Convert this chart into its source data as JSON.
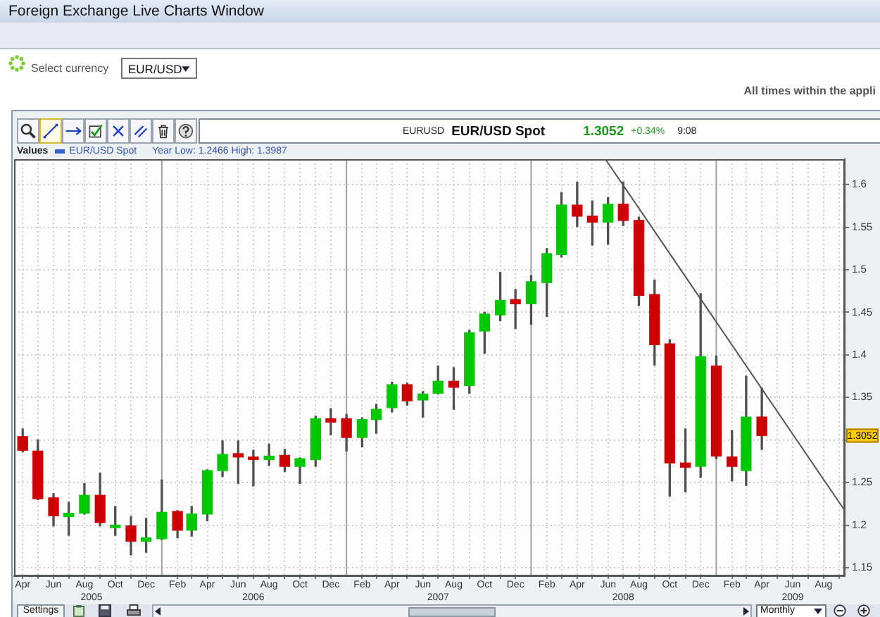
{
  "chart_data": {
    "type": "candlestick",
    "title": "EUR/USD Spot",
    "legend_title": "Values",
    "legend": "top left",
    "annotations": [
      "Foreign Exchange Live Charts Window",
      "Select currency",
      "EUR/USD",
      "All times within the appli",
      "EURUSD",
      "1.3052",
      "+0.34%",
      "9:08",
      "Year Low: 1.2466 High: 1.3987",
      {
        "text": "1.3052",
        "y": 1.3052
      },
      "Settings",
      "Monthly"
    ],
    "xlim": [
      "2005-03-15",
      "2009-09-12"
    ],
    "xticks": [
      {
        "value": "2005-04",
        "label": "Apr"
      },
      {
        "value": "2005-05",
        "label": null
      },
      {
        "value": "2005-06",
        "label": "Jun"
      },
      {
        "value": "2005-07",
        "label": null
      },
      {
        "value": "2005-08",
        "label": "Aug"
      },
      {
        "value": "2005-09",
        "label": null
      },
      {
        "value": "2005-10",
        "label": "Oct"
      },
      {
        "value": "2005-11",
        "label": null
      },
      {
        "value": "2005-12",
        "label": "Dec"
      },
      {
        "value": "2006-02",
        "label": "Feb"
      },
      {
        "value": "2006-03",
        "label": null
      },
      {
        "value": "2006-04",
        "label": "Apr"
      },
      {
        "value": "2006-05",
        "label": null
      },
      {
        "value": "2006-06",
        "label": "Jun"
      },
      {
        "value": "2006-07",
        "label": null
      },
      {
        "value": "2006-08",
        "label": "Aug"
      },
      {
        "value": "2006-09",
        "label": null
      },
      {
        "value": "2006-10",
        "label": "Oct"
      },
      {
        "value": "2006-11",
        "label": null
      },
      {
        "value": "2006-12",
        "label": "Dec"
      },
      {
        "value": "2007-02",
        "label": "Feb"
      },
      {
        "value": "2007-03",
        "label": null
      },
      {
        "value": "2007-04",
        "label": "Apr"
      },
      {
        "value": "2007-05",
        "label": null
      },
      {
        "value": "2007-06",
        "label": "Jun"
      },
      {
        "value": "2007-07",
        "label": null
      },
      {
        "value": "2007-08",
        "label": "Aug"
      },
      {
        "value": "2007-09",
        "label": null
      },
      {
        "value": "2007-10",
        "label": "Oct"
      },
      {
        "value": "2007-11",
        "label": null
      },
      {
        "value": "2007-12",
        "label": "Dec"
      },
      {
        "value": "2008-02",
        "label": "Feb"
      },
      {
        "value": "2008-03",
        "label": null
      },
      {
        "value": "2008-04",
        "label": "Apr"
      },
      {
        "value": "2008-05",
        "label": null
      },
      {
        "value": "2008-06",
        "label": "Jun"
      },
      {
        "value": "2008-07",
        "label": null
      },
      {
        "value": "2008-08",
        "label": "Aug"
      },
      {
        "value": "2008-09",
        "label": null
      },
      {
        "value": "2008-10",
        "label": "Oct"
      },
      {
        "value": "2008-11",
        "label": null
      },
      {
        "value": "2008-12",
        "label": "Dec"
      },
      {
        "value": "2009-02",
        "label": "Feb"
      },
      {
        "value": "2009-03",
        "label": null
      },
      {
        "value": "2009-04",
        "label": "Apr"
      },
      {
        "value": "2009-05",
        "label": null
      },
      {
        "value": "2009-06",
        "label": "Jun"
      },
      {
        "value": "2009-07",
        "label": null
      },
      {
        "value": "2009-08",
        "label": "Aug"
      },
      {
        "value": "2009-09",
        "label": null
      }
    ],
    "x2lim": [
      "2005-03-15",
      "2009-09-12"
    ],
    "x2ticks": [
      {
        "value": "2005-08-15",
        "label": "2005"
      },
      {
        "value": "2006-07",
        "label": "2006"
      },
      {
        "value": "2007-07",
        "label": "2007"
      },
      {
        "value": "2008-07",
        "label": "2008"
      },
      {
        "value": "2009-06",
        "label": "2009"
      }
    ],
    "ylim": [
      1.14,
      1.63
    ],
    "yticks": [
      1.15,
      1.2,
      1.25,
      {
        "value": 1.3,
        "label": null
      },
      1.35,
      1.4,
      1.45,
      1.5,
      1.55,
      1.6
    ],
    "grid": true,
    "ref_lines": [
      {
        "axis": "x",
        "value": "2006-01",
        "color": "#a0a0a0"
      },
      {
        "axis": "x",
        "value": "2007-01",
        "color": "#a0a0a0"
      },
      {
        "axis": "x",
        "value": "2008-01",
        "color": "#a0a0a0"
      },
      {
        "axis": "x",
        "value": "2009-01",
        "color": "#a0a0a0"
      }
    ],
    "series": [
      {
        "type": "candlestick",
        "name": "EUR/USD Spot",
        "color": "#3366cc",
        "x": [
          "2005-04",
          "2005-05",
          "2005-06",
          "2005-07",
          "2005-08",
          "2005-09",
          "2005-10",
          "2005-11",
          "2005-12",
          "2006-01",
          "2006-02",
          "2006-03",
          "2006-04",
          "2006-05",
          "2006-06",
          "2006-07",
          "2006-08",
          "2006-09",
          "2006-10",
          "2006-11",
          "2006-12",
          "2007-01",
          "2007-02",
          "2007-03",
          "2007-04",
          "2007-05",
          "2007-06",
          "2007-07",
          "2007-08",
          "2007-09",
          "2007-10",
          "2007-11",
          "2007-12",
          "2008-01",
          "2008-02",
          "2008-03",
          "2008-04",
          "2008-05",
          "2008-06",
          "2008-07",
          "2008-08",
          "2008-09",
          "2008-10",
          "2008-11",
          "2008-12",
          "2009-01",
          "2009-02",
          "2009-03",
          "2009-04"
        ],
        "ohlc": [
          [
            1.304,
            1.313,
            1.286,
            1.288
          ],
          [
            1.287,
            1.3,
            1.23,
            1.231
          ],
          [
            1.232,
            1.237,
            1.199,
            1.211
          ],
          [
            1.21,
            1.227,
            1.188,
            1.214
          ],
          [
            1.214,
            1.249,
            1.213,
            1.235
          ],
          [
            1.235,
            1.261,
            1.199,
            1.203
          ],
          [
            1.197,
            1.222,
            1.188,
            1.2
          ],
          [
            1.199,
            1.21,
            1.165,
            1.181
          ],
          [
            1.181,
            1.208,
            1.168,
            1.185
          ],
          [
            1.184,
            1.253,
            1.183,
            1.215
          ],
          [
            1.216,
            1.217,
            1.185,
            1.194
          ],
          [
            1.194,
            1.222,
            1.187,
            1.213
          ],
          [
            1.213,
            1.265,
            1.205,
            1.264
          ],
          [
            1.264,
            1.299,
            1.257,
            1.283
          ],
          [
            1.284,
            1.299,
            1.249,
            1.28
          ],
          [
            1.28,
            1.288,
            1.246,
            1.277
          ],
          [
            1.277,
            1.295,
            1.27,
            1.281
          ],
          [
            1.282,
            1.289,
            1.263,
            1.269
          ],
          [
            1.269,
            1.279,
            1.249,
            1.278
          ],
          [
            1.277,
            1.328,
            1.269,
            1.325
          ],
          [
            1.325,
            1.337,
            1.306,
            1.321
          ],
          [
            1.325,
            1.33,
            1.287,
            1.303
          ],
          [
            1.303,
            1.326,
            1.292,
            1.324
          ],
          [
            1.324,
            1.342,
            1.308,
            1.336
          ],
          [
            1.338,
            1.368,
            1.333,
            1.365
          ],
          [
            1.365,
            1.367,
            1.341,
            1.346
          ],
          [
            1.347,
            1.357,
            1.327,
            1.354
          ],
          [
            1.355,
            1.387,
            1.354,
            1.369
          ],
          [
            1.369,
            1.385,
            1.336,
            1.362
          ],
          [
            1.364,
            1.429,
            1.355,
            1.426
          ],
          [
            1.428,
            1.45,
            1.402,
            1.448
          ],
          [
            1.447,
            1.497,
            1.44,
            1.464
          ],
          [
            1.465,
            1.477,
            1.431,
            1.46
          ],
          [
            1.46,
            1.493,
            1.436,
            1.486
          ],
          [
            1.485,
            1.525,
            1.445,
            1.519
          ],
          [
            1.518,
            1.591,
            1.515,
            1.576
          ],
          [
            1.576,
            1.603,
            1.551,
            1.563
          ],
          [
            1.563,
            1.581,
            1.529,
            1.556
          ],
          [
            1.556,
            1.585,
            1.53,
            1.577
          ],
          [
            1.577,
            1.603,
            1.552,
            1.558
          ],
          [
            1.558,
            1.562,
            1.458,
            1.47
          ],
          [
            1.471,
            1.488,
            1.388,
            1.412
          ],
          [
            1.413,
            1.418,
            1.234,
            1.273
          ],
          [
            1.273,
            1.313,
            1.239,
            1.268
          ],
          [
            1.269,
            1.472,
            1.256,
            1.398
          ],
          [
            1.387,
            1.3987,
            1.278,
            1.281
          ],
          [
            1.28,
            1.311,
            1.252,
            1.269
          ],
          [
            1.264,
            1.375,
            1.2466,
            1.327
          ],
          [
            1.327,
            1.361,
            1.289,
            1.3052
          ]
        ],
        "colors": [
          "#cc0000",
          "#cc0000",
          "#cc0000",
          "#00c800",
          "#00c800",
          "#cc0000",
          "#00c800",
          "#cc0000",
          "#00c800",
          "#00c800",
          "#cc0000",
          "#00c800",
          "#00c800",
          "#00c800",
          "#cc0000",
          "#cc0000",
          "#00c800",
          "#cc0000",
          "#00c800",
          "#00c800",
          "#cc0000",
          "#cc0000",
          "#00c800",
          "#00c800",
          "#00c800",
          "#cc0000",
          "#00c800",
          "#00c800",
          "#cc0000",
          "#00c800",
          "#00c800",
          "#00c800",
          "#cc0000",
          "#00c800",
          "#00c800",
          "#00c800",
          "#cc0000",
          "#cc0000",
          "#00c800",
          "#cc0000",
          "#cc0000",
          "#cc0000",
          "#cc0000",
          "#cc0000",
          "#00c800",
          "#cc0000",
          "#cc0000",
          "#00c800",
          "#cc0000"
        ]
      },
      {
        "type": "line",
        "x": [
          "2008-05-28",
          "2009-09-12"
        ],
        "values": [
          1.629,
          1.217
        ],
        "color": "#555555"
      }
    ]
  }
}
